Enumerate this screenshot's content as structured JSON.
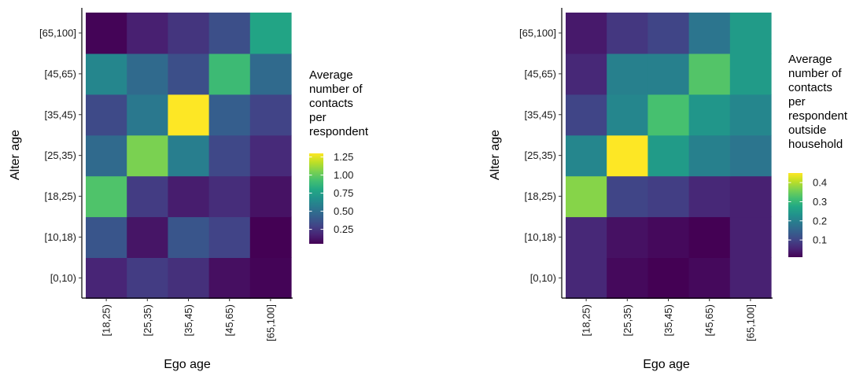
{
  "chart_data": [
    {
      "type": "heatmap",
      "x_categories": [
        "[18,25)",
        "[25,35)",
        "[35,45)",
        "[45,65)",
        "[65,100]"
      ],
      "y_categories": [
        "[0,10)",
        "[10,18)",
        "[18,25)",
        "[25,35)",
        "[35,45)",
        "[45,65)",
        "[65,100]"
      ],
      "xlabel": "Ego age",
      "ylabel": "Alter age",
      "legend_title": [
        "Average",
        "number of",
        "contacts",
        "per",
        "respondent"
      ],
      "color_scale": "viridis",
      "color_range": [
        0.05,
        1.3
      ],
      "legend_ticks": [
        "0.25",
        "0.50",
        "0.75",
        "1.00",
        "1.25"
      ],
      "legend_tick_values": [
        0.25,
        0.5,
        0.75,
        1.0,
        1.25
      ],
      "values": [
        [
          0.18,
          0.27,
          0.22,
          0.1,
          0.06
        ],
        [
          0.38,
          0.12,
          0.38,
          0.3,
          0.05
        ],
        [
          0.95,
          0.27,
          0.15,
          0.21,
          0.11
        ],
        [
          0.48,
          1.05,
          0.58,
          0.32,
          0.2
        ],
        [
          0.33,
          0.55,
          1.3,
          0.42,
          0.3
        ],
        [
          0.62,
          0.48,
          0.35,
          0.9,
          0.48
        ],
        [
          0.06,
          0.16,
          0.24,
          0.35,
          0.78
        ]
      ]
    },
    {
      "type": "heatmap",
      "x_categories": [
        "[18,25)",
        "[25,35)",
        "[35,45)",
        "[45,65)",
        "[65,100]"
      ],
      "y_categories": [
        "[0,10)",
        "[10,18)",
        "[18,25)",
        "[25,35)",
        "[35,45)",
        "[45,65)",
        "[65,100]"
      ],
      "xlabel": "Ego age",
      "ylabel": "Alter age",
      "legend_title": [
        "Average",
        "number of",
        "contacts",
        "per",
        "respondent",
        "outside",
        "household"
      ],
      "color_scale": "viridis",
      "color_range": [
        0.01,
        0.45
      ],
      "legend_ticks": [
        "0.1",
        "0.2",
        "0.3",
        "0.4"
      ],
      "legend_tick_values": [
        0.1,
        0.2,
        0.3,
        0.4
      ],
      "values": [
        [
          0.06,
          0.02,
          0.01,
          0.02,
          0.05
        ],
        [
          0.06,
          0.03,
          0.02,
          0.01,
          0.05
        ],
        [
          0.37,
          0.1,
          0.09,
          0.06,
          0.05
        ],
        [
          0.21,
          0.45,
          0.25,
          0.2,
          0.18
        ],
        [
          0.1,
          0.21,
          0.32,
          0.24,
          0.21
        ],
        [
          0.06,
          0.2,
          0.2,
          0.33,
          0.25
        ],
        [
          0.04,
          0.08,
          0.1,
          0.18,
          0.25
        ]
      ]
    }
  ]
}
